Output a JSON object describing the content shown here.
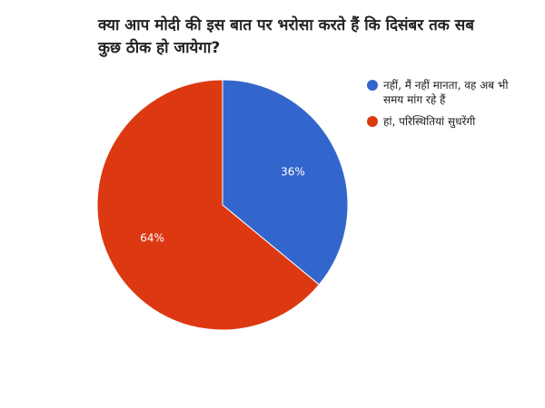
{
  "chart_data": {
    "type": "pie",
    "title": "क्या आप मोदी की इस बात पर भरोसा करते हैं कि दिसंबर तक सब कुछ ठीक हो जायेगा?",
    "slices": [
      {
        "label": "नहीं, मैं नहीं मानता, वह अब भी समय मांग रहे हैं",
        "value": 36,
        "display": "36%",
        "color": "#3366cc"
      },
      {
        "label": "हां, परिस्थितियां सुधरेंगी",
        "value": 64,
        "display": "64%",
        "color": "#dc3912"
      }
    ],
    "legend_position": "right",
    "label_color": "#ffffff"
  }
}
